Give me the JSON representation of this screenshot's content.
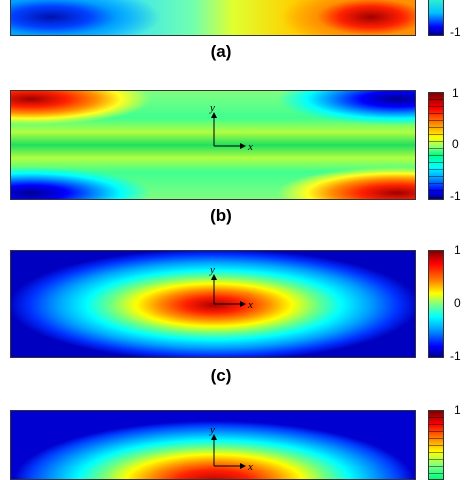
{
  "figure": {
    "panels": [
      {
        "label": "(a)",
        "colorbar_ticks": [
          "-1"
        ]
      },
      {
        "label": "(b)",
        "colorbar_ticks": [
          "1",
          "0",
          "-1"
        ],
        "axis_x": "x",
        "axis_y": "y"
      },
      {
        "label": "(c)",
        "colorbar_ticks": [
          "1",
          "0",
          "-1"
        ],
        "axis_x": "x",
        "axis_y": "y"
      },
      {
        "label": "",
        "colorbar_ticks": [
          "1"
        ],
        "axis_x": "x",
        "axis_y": "y"
      }
    ],
    "colormap": [
      "#00008f",
      "#0000ff",
      "#00a0ff",
      "#00ffff",
      "#80ff80",
      "#ffff00",
      "#ff8000",
      "#ff0000",
      "#800000"
    ]
  }
}
